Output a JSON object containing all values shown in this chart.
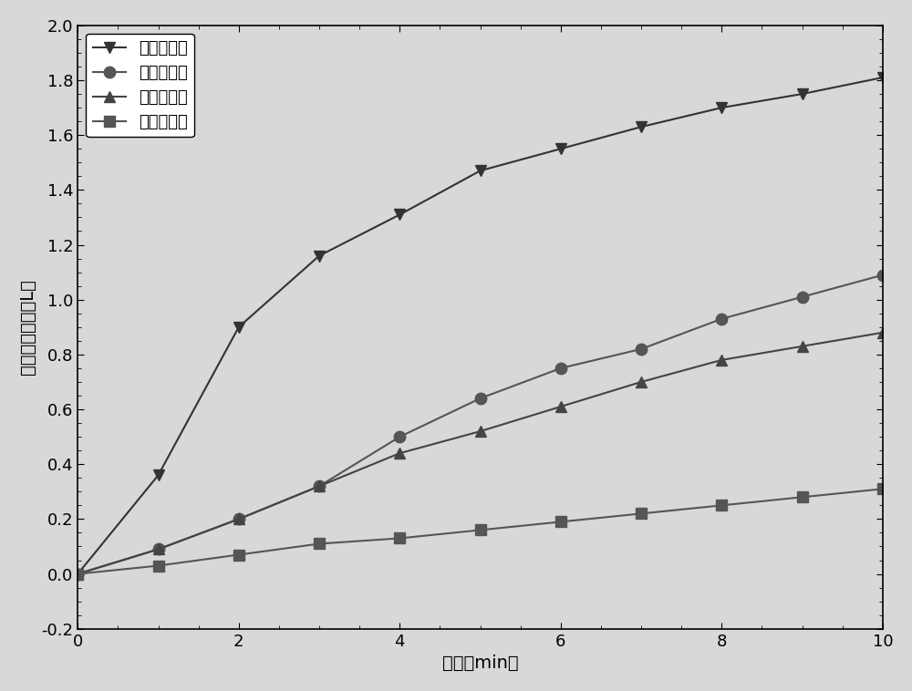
{
  "title": "",
  "xlabel": "时间（min）",
  "ylabel": "氧气发生体积（L）",
  "xlim": [
    0,
    10
  ],
  "ylim": [
    -0.2,
    2.0
  ],
  "xticks": [
    0,
    2,
    4,
    6,
    8,
    10
  ],
  "yticks": [
    -0.2,
    0.0,
    0.2,
    0.4,
    0.6,
    0.8,
    1.0,
    1.2,
    1.4,
    1.6,
    1.8,
    2.0
  ],
  "series": [
    {
      "label": "四次銀担载",
      "x": [
        0,
        1,
        2,
        3,
        4,
        5,
        6,
        7,
        8,
        9,
        10
      ],
      "y": [
        0.0,
        0.36,
        0.9,
        1.16,
        1.31,
        1.47,
        1.55,
        1.63,
        1.7,
        1.75,
        1.81
      ],
      "color": "#333333",
      "marker": "v",
      "markersize": 9,
      "linewidth": 1.5
    },
    {
      "label": "三次銀担载",
      "x": [
        0,
        1,
        2,
        3,
        4,
        5,
        6,
        7,
        8,
        9,
        10
      ],
      "y": [
        0.0,
        0.09,
        0.2,
        0.32,
        0.5,
        0.64,
        0.75,
        0.82,
        0.93,
        1.01,
        1.09
      ],
      "color": "#555555",
      "marker": "o",
      "markersize": 9,
      "linewidth": 1.5
    },
    {
      "label": "二次銀担载",
      "x": [
        0,
        1,
        2,
        3,
        4,
        5,
        6,
        7,
        8,
        9,
        10
      ],
      "y": [
        0.0,
        0.09,
        0.2,
        0.32,
        0.44,
        0.52,
        0.61,
        0.7,
        0.78,
        0.83,
        0.88
      ],
      "color": "#444444",
      "marker": "^",
      "markersize": 9,
      "linewidth": 1.5
    },
    {
      "label": "一次銀担载",
      "x": [
        0,
        1,
        2,
        3,
        4,
        5,
        6,
        7,
        8,
        9,
        10
      ],
      "y": [
        0.0,
        0.03,
        0.07,
        0.11,
        0.13,
        0.16,
        0.19,
        0.22,
        0.25,
        0.28,
        0.31
      ],
      "color": "#555555",
      "marker": "s",
      "markersize": 8,
      "linewidth": 1.5
    }
  ],
  "legend_loc": "upper left",
  "legend_fontsize": 13,
  "axis_fontsize": 14,
  "tick_fontsize": 13,
  "background_color": "#d8d8d8",
  "plot_bg_color": "#d8d8d8"
}
